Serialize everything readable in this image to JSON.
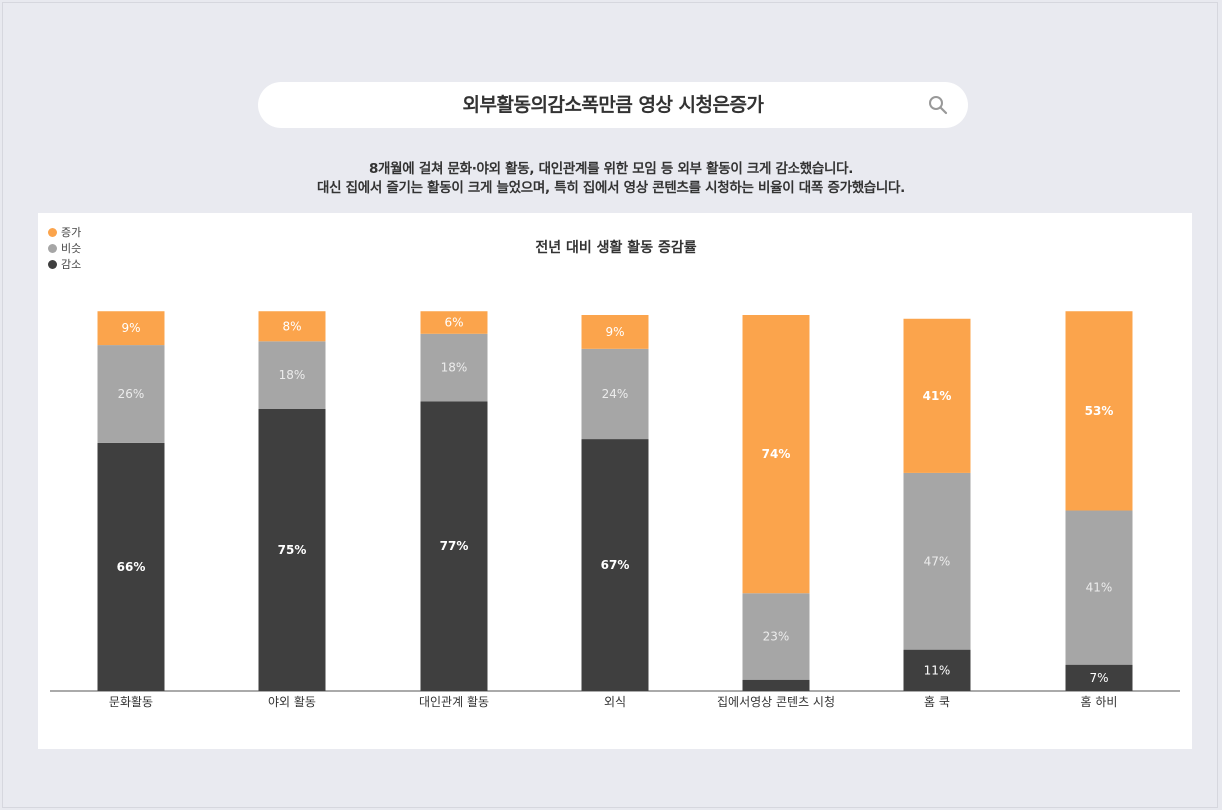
{
  "header": {
    "search_title": "외부활동의감소폭만큼 영상 시청은증가",
    "subtitle_line1": "8개월에 걸쳐 문화·야외 활동, 대인관계를 위한 모임 등 외부 활동이 크게 감소했습니다.",
    "subtitle_line2": "대신 집에서 즐기는 활동이 크게 늘었으며, 특히 집에서 영상 콘텐츠를 시청하는 비율이 대폭 증가했습니다."
  },
  "colors": {
    "increase": "#fba44c",
    "similar": "#a6a6a6",
    "decrease": "#3f3f3f"
  },
  "chart_data": {
    "type": "bar",
    "stacked": true,
    "title": "전년 대비 생활 활동 증감률",
    "categories": [
      "문화활동",
      "야외 활동",
      "대인관계 활동",
      "외식",
      "집에서영상 콘텐츠 시청",
      "홈 쿡",
      "홈 하비"
    ],
    "series": [
      {
        "name": "감소",
        "values": [
          66,
          75,
          77,
          67,
          3,
          11,
          7
        ],
        "labels": [
          "66%",
          "75%",
          "77%",
          "67%",
          "",
          "11%",
          "7%"
        ]
      },
      {
        "name": "비슷",
        "values": [
          26,
          18,
          18,
          24,
          23,
          47,
          41
        ],
        "labels": [
          "26%",
          "18%",
          "18%",
          "24%",
          "23%",
          "47%",
          "41%"
        ]
      },
      {
        "name": "증가",
        "values": [
          9,
          8,
          6,
          9,
          74,
          41,
          53
        ],
        "labels": [
          "9%",
          "8%",
          "6%",
          "9%",
          "74%",
          "41%",
          "53%"
        ]
      }
    ],
    "legend": {
      "position": "top-left",
      "order": [
        "증가",
        "비슷",
        "감소"
      ]
    },
    "ylim": [
      0,
      100
    ],
    "grid": false
  }
}
